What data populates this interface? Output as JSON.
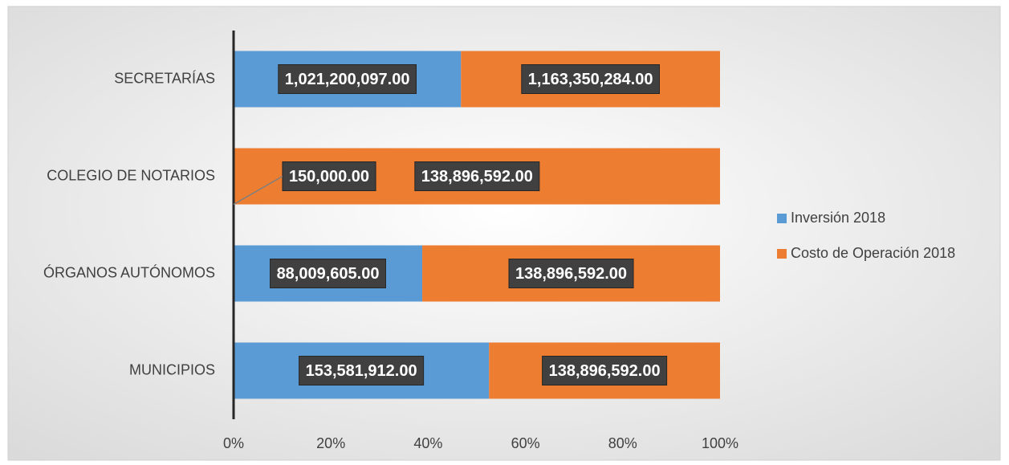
{
  "chart_data": {
    "type": "stacked_percent_barh",
    "categories": [
      "SECRETARÍAS",
      "COLEGIO DE NOTARIOS",
      "ÓRGANOS AUTÓNOMOS",
      "MUNICIPIOS"
    ],
    "series": [
      {
        "name": "Inversión 2018",
        "color": "#5b9bd5",
        "values": [
          1021200097,
          150000,
          88009605,
          153581912
        ],
        "value_labels": [
          "1,021,200,097.00",
          "150,000.00",
          "88,009,605.00",
          "153,581,912.00"
        ]
      },
      {
        "name": "Costo de Operación 2018",
        "color": "#ed7d31",
        "values": [
          1163350284,
          138896592,
          138896592,
          138896592
        ],
        "value_labels": [
          "1,163,350,284.00",
          "138,896,592.00",
          "138,896,592.00",
          "138,896,592.00"
        ]
      }
    ],
    "xlim": [
      0,
      100
    ],
    "xticks": [
      {
        "value": 0,
        "label": "0%"
      },
      {
        "value": 20,
        "label": "20%"
      },
      {
        "value": 40,
        "label": "40%"
      },
      {
        "value": 60,
        "label": "60%"
      },
      {
        "value": 80,
        "label": "80%"
      },
      {
        "value": 100,
        "label": "100%"
      }
    ],
    "legend": "right"
  }
}
